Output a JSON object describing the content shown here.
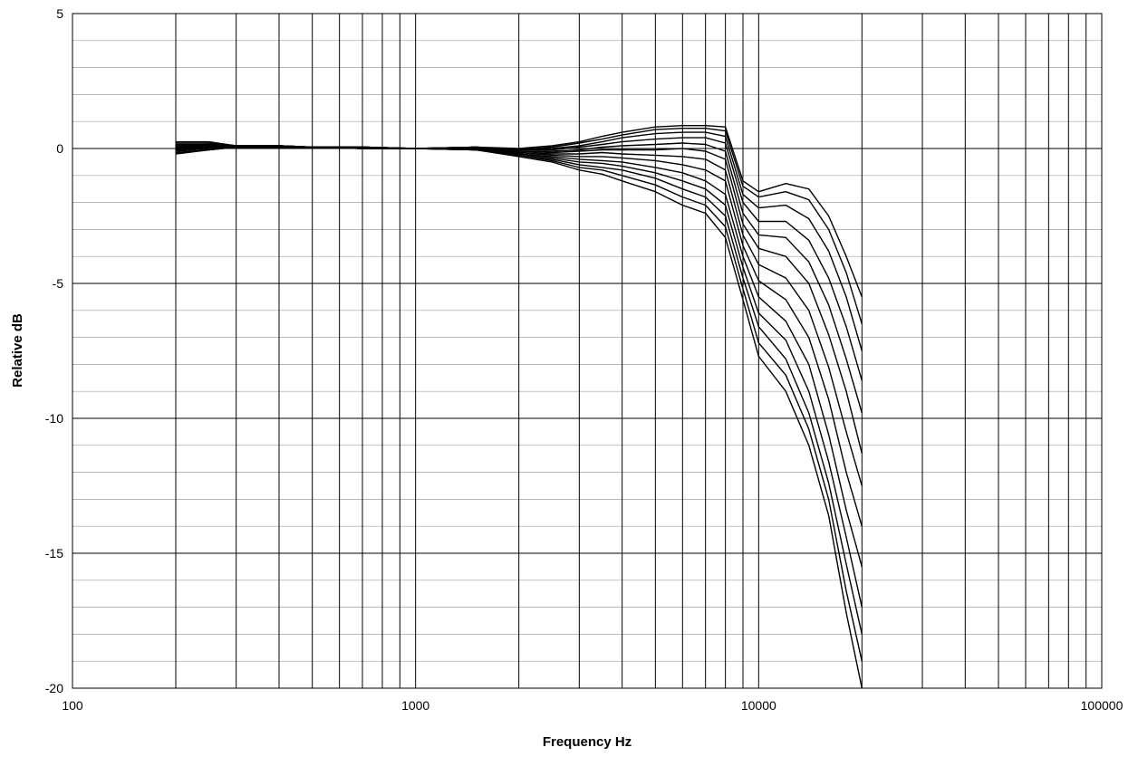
{
  "chart_data": {
    "type": "line",
    "title": "",
    "xlabel": "Frequency Hz",
    "ylabel": "Relative dB",
    "x_scale": "log",
    "xlim": [
      100,
      100000
    ],
    "ylim": [
      -20,
      5
    ],
    "x_ticks": [
      {
        "value": 100,
        "label": "100"
      },
      {
        "value": 1000,
        "label": "1000"
      },
      {
        "value": 10000,
        "label": "10000"
      },
      {
        "value": 100000,
        "label": "100000"
      }
    ],
    "y_ticks": [
      {
        "value": 5,
        "label": "5"
      },
      {
        "value": 0,
        "label": "0"
      },
      {
        "value": -5,
        "label": "-5"
      },
      {
        "value": -10,
        "label": "-10"
      },
      {
        "value": -15,
        "label": "-15"
      },
      {
        "value": -20,
        "label": "-20"
      }
    ],
    "x_minor_gridlines": [
      200,
      300,
      400,
      500,
      600,
      700,
      800,
      900,
      2000,
      3000,
      4000,
      5000,
      6000,
      7000,
      8000,
      9000,
      20000,
      30000,
      40000,
      50000,
      60000,
      70000,
      80000,
      90000
    ],
    "y_minor_step": 1,
    "grid": true,
    "legend": "none",
    "line_color": "#000000",
    "x": [
      200,
      250,
      300,
      400,
      500,
      700,
      1000,
      1500,
      2000,
      2500,
      3000,
      3500,
      4000,
      5000,
      6000,
      7000,
      8000,
      9000,
      10000,
      12000,
      14000,
      16000,
      18000,
      20000
    ],
    "series": [
      {
        "values": [
          0.25,
          0.25,
          0.1,
          0.1,
          0.05,
          0.05,
          0.0,
          0.05,
          0.0,
          0.1,
          0.25,
          0.45,
          0.6,
          0.8,
          0.85,
          0.85,
          0.8,
          -1.2,
          -1.6,
          -1.3,
          -1.5,
          -2.5,
          -4.0,
          -5.5
        ]
      },
      {
        "values": [
          0.2,
          0.2,
          0.1,
          0.1,
          0.05,
          0.05,
          0.0,
          0.05,
          -0.05,
          0.05,
          0.2,
          0.35,
          0.5,
          0.7,
          0.75,
          0.75,
          0.65,
          -1.4,
          -1.8,
          -1.6,
          -1.9,
          -3.0,
          -4.6,
          -6.5
        ]
      },
      {
        "values": [
          0.15,
          0.15,
          0.1,
          0.1,
          0.05,
          0.05,
          0.0,
          0.05,
          -0.05,
          0.0,
          0.1,
          0.25,
          0.4,
          0.55,
          0.6,
          0.6,
          0.45,
          -1.7,
          -2.2,
          -2.1,
          -2.6,
          -3.8,
          -5.5,
          -7.5
        ]
      },
      {
        "values": [
          0.1,
          0.15,
          0.1,
          0.1,
          0.05,
          0.05,
          0.0,
          0.05,
          -0.05,
          -0.05,
          0.05,
          0.15,
          0.25,
          0.35,
          0.4,
          0.4,
          0.2,
          -2.0,
          -2.7,
          -2.7,
          -3.4,
          -4.8,
          -6.6,
          -8.6
        ]
      },
      {
        "values": [
          0.1,
          0.1,
          0.05,
          0.1,
          0.05,
          0.05,
          0.0,
          0.05,
          -0.1,
          -0.1,
          -0.05,
          0.05,
          0.1,
          0.15,
          0.2,
          0.15,
          -0.1,
          -2.4,
          -3.2,
          -3.3,
          -4.2,
          -5.8,
          -7.8,
          -9.8
        ]
      },
      {
        "values": [
          0.05,
          0.1,
          0.05,
          0.1,
          0.05,
          0.05,
          0.0,
          0.0,
          -0.1,
          -0.15,
          -0.1,
          -0.05,
          -0.05,
          -0.05,
          0.0,
          -0.1,
          -0.4,
          -2.8,
          -3.7,
          -4.0,
          -5.0,
          -6.9,
          -9.0,
          -11.3
        ]
      },
      {
        "values": [
          0.0,
          0.1,
          0.05,
          0.05,
          0.05,
          0.05,
          0.0,
          0.0,
          -0.15,
          -0.2,
          -0.2,
          -0.15,
          -0.2,
          -0.25,
          -0.3,
          -0.4,
          -0.8,
          -3.2,
          -4.3,
          -4.8,
          -6.0,
          -8.1,
          -10.5,
          -12.5
        ]
      },
      {
        "values": [
          0.0,
          0.05,
          0.05,
          0.05,
          0.05,
          0.0,
          0.0,
          0.0,
          -0.15,
          -0.25,
          -0.3,
          -0.3,
          -0.35,
          -0.45,
          -0.6,
          -0.8,
          -1.2,
          -3.6,
          -4.9,
          -5.6,
          -7.0,
          -9.3,
          -12.0,
          -14.0
        ]
      },
      {
        "values": [
          -0.05,
          0.05,
          0.05,
          0.05,
          0.05,
          0.0,
          0.0,
          0.0,
          -0.2,
          -0.3,
          -0.4,
          -0.45,
          -0.5,
          -0.7,
          -0.9,
          -1.2,
          -1.7,
          -4.0,
          -5.5,
          -6.4,
          -8.0,
          -10.6,
          -13.4,
          -15.5
        ]
      },
      {
        "values": [
          -0.05,
          0.0,
          0.05,
          0.05,
          0.05,
          0.0,
          0.0,
          -0.05,
          -0.2,
          -0.35,
          -0.5,
          -0.55,
          -0.65,
          -0.9,
          -1.2,
          -1.5,
          -2.1,
          -4.4,
          -6.1,
          -7.1,
          -9.0,
          -11.6,
          -14.4,
          -17.0
        ]
      },
      {
        "values": [
          -0.1,
          0.0,
          0.05,
          0.05,
          0.05,
          0.0,
          0.0,
          -0.05,
          -0.25,
          -0.4,
          -0.6,
          -0.7,
          -0.8,
          -1.1,
          -1.5,
          -1.8,
          -2.5,
          -4.8,
          -6.6,
          -7.8,
          -9.8,
          -12.4,
          -15.4,
          -18.0
        ]
      },
      {
        "values": [
          -0.15,
          -0.05,
          0.05,
          0.05,
          0.05,
          0.0,
          0.0,
          -0.05,
          -0.25,
          -0.45,
          -0.7,
          -0.8,
          -1.0,
          -1.35,
          -1.8,
          -2.1,
          -2.9,
          -5.2,
          -7.2,
          -8.4,
          -10.4,
          -13.0,
          -16.4,
          -19.0
        ]
      },
      {
        "values": [
          -0.2,
          -0.05,
          0.05,
          0.05,
          0.05,
          0.0,
          0.0,
          -0.05,
          -0.3,
          -0.5,
          -0.8,
          -0.95,
          -1.2,
          -1.6,
          -2.1,
          -2.4,
          -3.3,
          -5.6,
          -7.7,
          -9.0,
          -11.0,
          -13.6,
          -17.2,
          -20.0
        ]
      }
    ]
  }
}
